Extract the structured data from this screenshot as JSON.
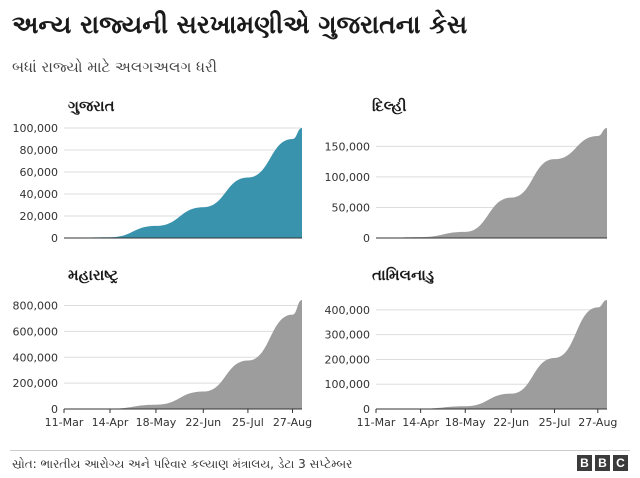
{
  "title": "અન્ય રાજ્યની સરખામણીએ ગુજરાતના કેસ",
  "subtitle": "બધાં રાજ્યો માટે અલગઅલગ ધરી",
  "source": "સ્રોત: ભારતીય આરોગ્ય અને પરિવાર કલ્યાણ મંત્રાલય, ડેટા 3 સપ્ટેમ્બર",
  "logo": [
    "B",
    "B",
    "C"
  ],
  "chart_data": [
    {
      "type": "area",
      "title": "ગુજરાત",
      "color": "#3a93ad",
      "x": [
        "11-Mar",
        "14-Apr",
        "18-May",
        "22-Jun",
        "25-Jul",
        "27-Aug",
        "3-Sep"
      ],
      "y": [
        0,
        700,
        11000,
        28000,
        55000,
        90000,
        100000
      ],
      "ylim": [
        0,
        100000
      ],
      "yticks": [
        "0",
        "20,000",
        "40,000",
        "60,000",
        "80,000",
        "100,000"
      ],
      "ytick_values": [
        0,
        20000,
        40000,
        60000,
        80000,
        100000
      ],
      "xticks": [],
      "grid": true
    },
    {
      "type": "area",
      "title": "દિલ્હી",
      "color": "#9d9d9d",
      "x": [
        "11-Mar",
        "14-Apr",
        "18-May",
        "22-Jun",
        "25-Jul",
        "27-Aug",
        "3-Sep"
      ],
      "y": [
        0,
        1500,
        10000,
        66000,
        129000,
        167000,
        180000
      ],
      "ylim": [
        0,
        180000
      ],
      "yticks": [
        "0",
        "50,000",
        "100,000",
        "150,000"
      ],
      "ytick_values": [
        0,
        50000,
        100000,
        150000
      ],
      "xticks": [],
      "grid": true
    },
    {
      "type": "area",
      "title": "મહારાષ્ટ્ર",
      "color": "#9d9d9d",
      "x": [
        "11-Mar",
        "14-Apr",
        "18-May",
        "22-Jun",
        "25-Jul",
        "27-Aug",
        "3-Sep"
      ],
      "y": [
        0,
        2700,
        33000,
        135000,
        375000,
        730000,
        843000
      ],
      "ylim": [
        0,
        843000
      ],
      "yticks": [
        "0",
        "200,000",
        "400,000",
        "600,000",
        "800,000"
      ],
      "ytick_values": [
        0,
        200000,
        400000,
        600000,
        800000
      ],
      "xticks": [
        "11-Mar",
        "14-Apr",
        "18-May",
        "22-Jun",
        "25-Jul",
        "27-Aug"
      ],
      "grid": true
    },
    {
      "type": "area",
      "title": "તામિલનાડુ",
      "color": "#9d9d9d",
      "x": [
        "11-Mar",
        "14-Apr",
        "18-May",
        "22-Jun",
        "25-Jul",
        "27-Aug",
        "3-Sep"
      ],
      "y": [
        0,
        1200,
        11000,
        62000,
        206000,
        410000,
        440000
      ],
      "ylim": [
        0,
        440000
      ],
      "yticks": [
        "0",
        "100,000",
        "200,000",
        "300,000",
        "400,000"
      ],
      "ytick_values": [
        0,
        100000,
        200000,
        300000,
        400000
      ],
      "xticks": [
        "11-Mar",
        "14-Apr",
        "18-May",
        "22-Jun",
        "25-Jul",
        "27-Aug"
      ],
      "grid": true
    }
  ]
}
